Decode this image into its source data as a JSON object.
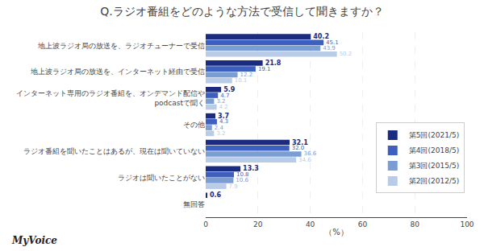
{
  "chart_data": {
    "type": "bar",
    "orientation": "horizontal",
    "title": "Q.ラジオ番組をどのような方法で受信して聞きますか？",
    "categories": [
      "地上波ラジオ局の放送を、ラジオチューナーで受信",
      "地上波ラジオ局の放送を、インターネット経由で受信",
      "インターネット専用のラジオ番組を、オンデマンド配信や\npodcastで聞く",
      "その他",
      "ラジオ番組を聞いたことはあるが、現在は聞いていない",
      "ラジオは聞いたことがない",
      "無回答"
    ],
    "series": [
      {
        "name": "第5回(2021/5)",
        "color": "#1A2B80",
        "values": [
          40.2,
          21.8,
          5.9,
          3.7,
          32.1,
          13.3,
          0.6
        ],
        "value_labels": [
          "40.2",
          "21.8",
          "5.9",
          "3.7",
          "32.1",
          "13.3",
          "0.6"
        ]
      },
      {
        "name": "第4回(2018/5)",
        "color": "#3D5FBF",
        "values": [
          45.1,
          19.1,
          4.7,
          4.3,
          32.0,
          10.8,
          0
        ],
        "value_labels": [
          "45.1",
          "19.1",
          "4.7",
          "4.3",
          "32.0",
          "10.8",
          null
        ]
      },
      {
        "name": "第3回(2015/5)",
        "color": "#7A9DD4",
        "values": [
          43.9,
          12.2,
          3.2,
          2.4,
          36.6,
          10.6,
          0
        ],
        "value_labels": [
          "43.9",
          "12.2",
          "3.2",
          "2.4",
          "36.6",
          "10.6",
          null
        ]
      },
      {
        "name": "第2回(2012/5)",
        "color": "#B8CCE8",
        "values": [
          50.2,
          10.1,
          4.2,
          3.2,
          34.6,
          7.9,
          0
        ],
        "value_labels": [
          "50.2",
          "10.1",
          "4.2",
          "3.2",
          "34.6",
          "7.9",
          null
        ]
      }
    ],
    "xlabel": "（%）",
    "xlim": [
      0,
      100
    ],
    "xticks": [
      0,
      20,
      40,
      60,
      80,
      100
    ],
    "grid": true,
    "data_labels": true,
    "legend": "right",
    "annotations": [
      "MyVoice"
    ]
  }
}
